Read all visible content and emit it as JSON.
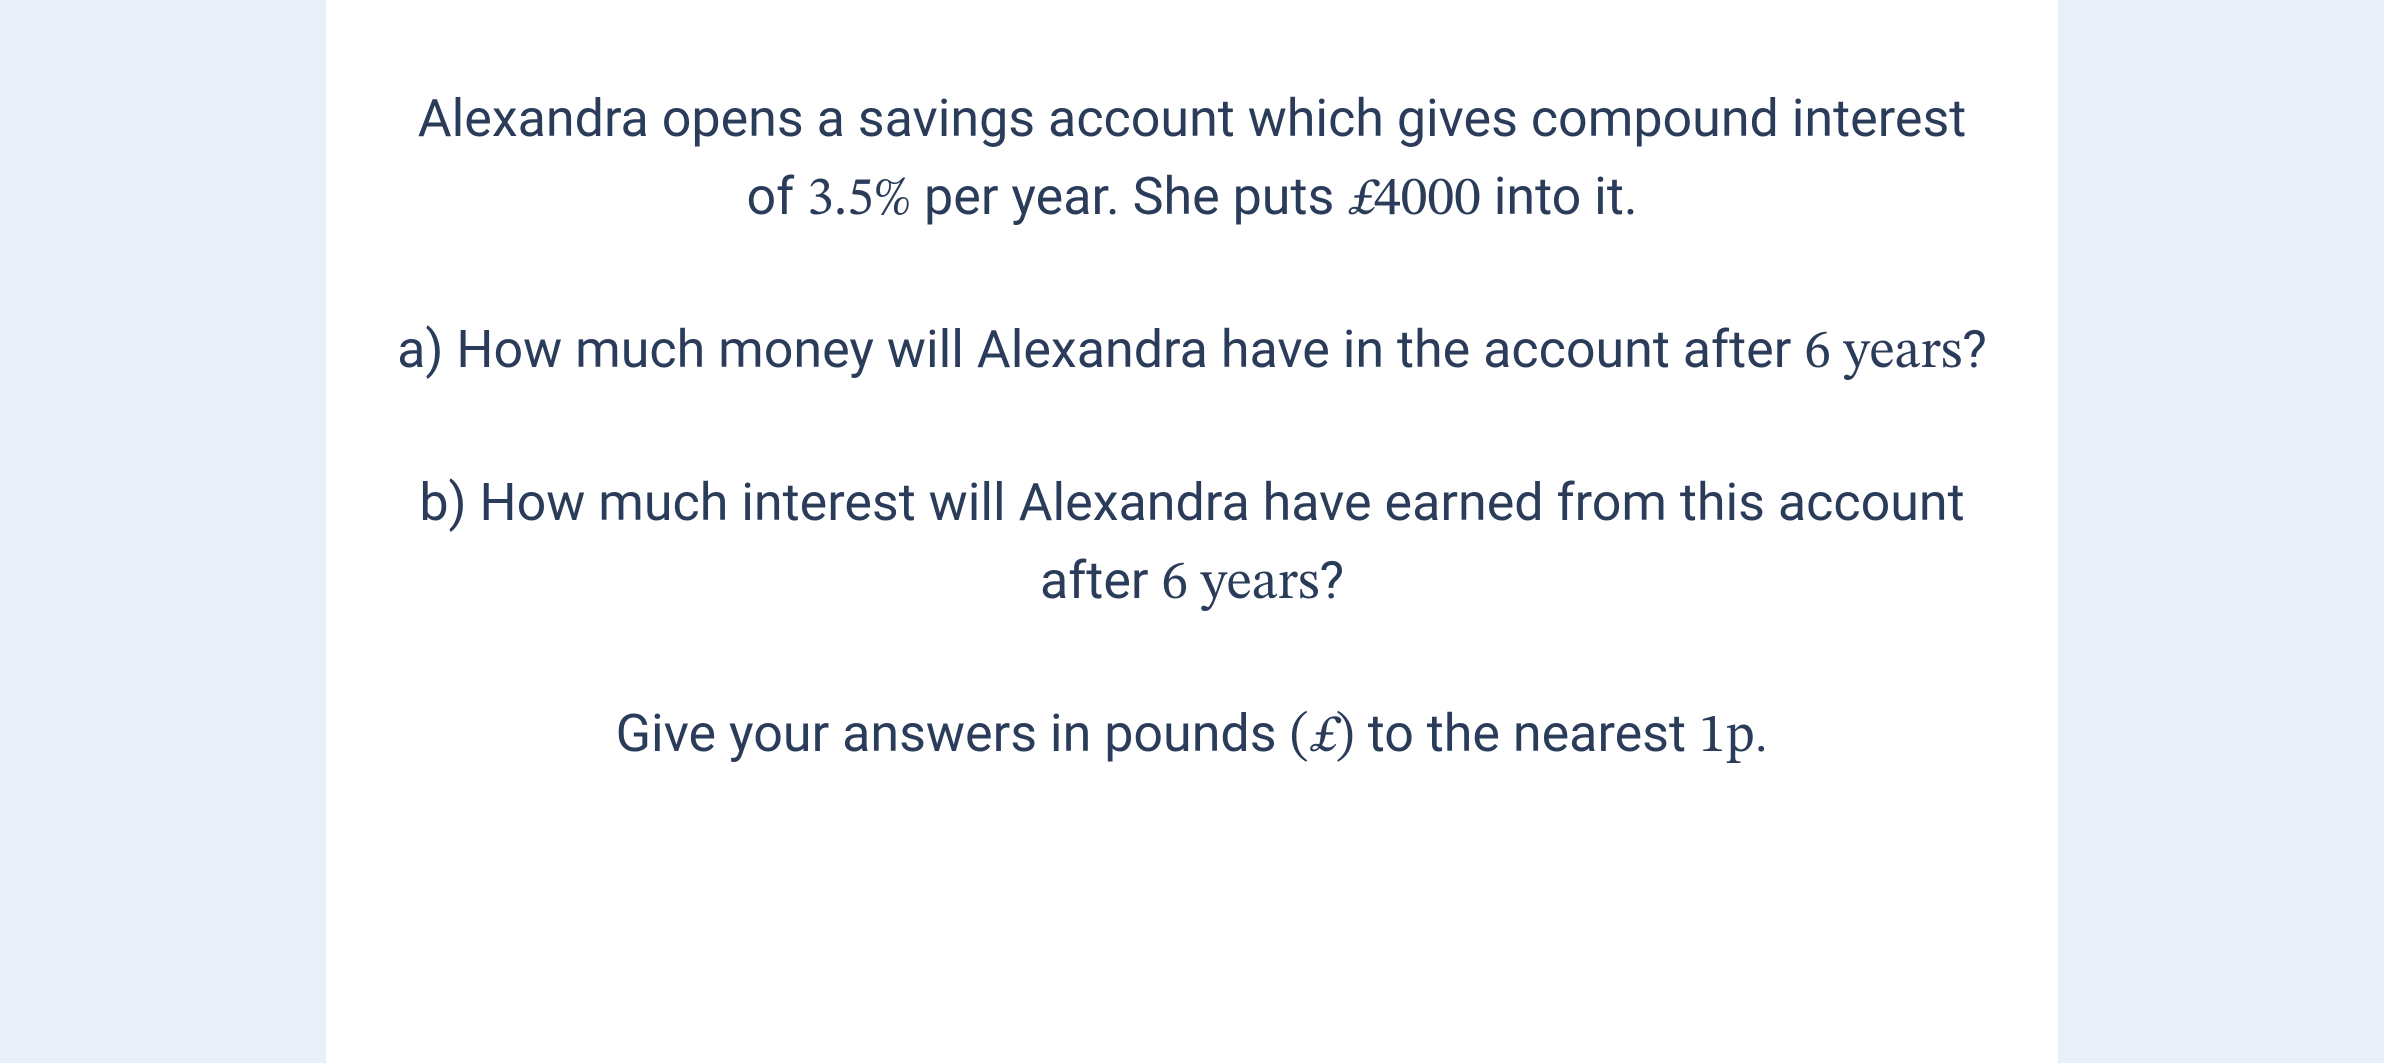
{
  "background_color": "#eaf0f9",
  "card_background_color": "#ffffff",
  "text_color": "#2b3c5a",
  "font_size_body": 52,
  "font_size_math": 54,
  "intro": {
    "part1": "Alexandra opens a savings account which gives compound interest of ",
    "rate": "3.5%",
    "part2": " per year. She puts ",
    "currency": "£",
    "amount": "4000",
    "part3": " into it."
  },
  "question_a": {
    "part1": "a) How much money will Alexandra have in the account after ",
    "duration": "6 years",
    "part2": "?"
  },
  "question_b": {
    "part1": "b) How much interest will Alexandra have earned from this account after ",
    "duration": "6 years",
    "part2": "?"
  },
  "instruction": {
    "part1": "Give your answers in pounds ",
    "paren_open": "(",
    "currency": "£",
    "paren_close": ")",
    "part2": " to the nearest ",
    "precision": "1p",
    "part3": "."
  }
}
